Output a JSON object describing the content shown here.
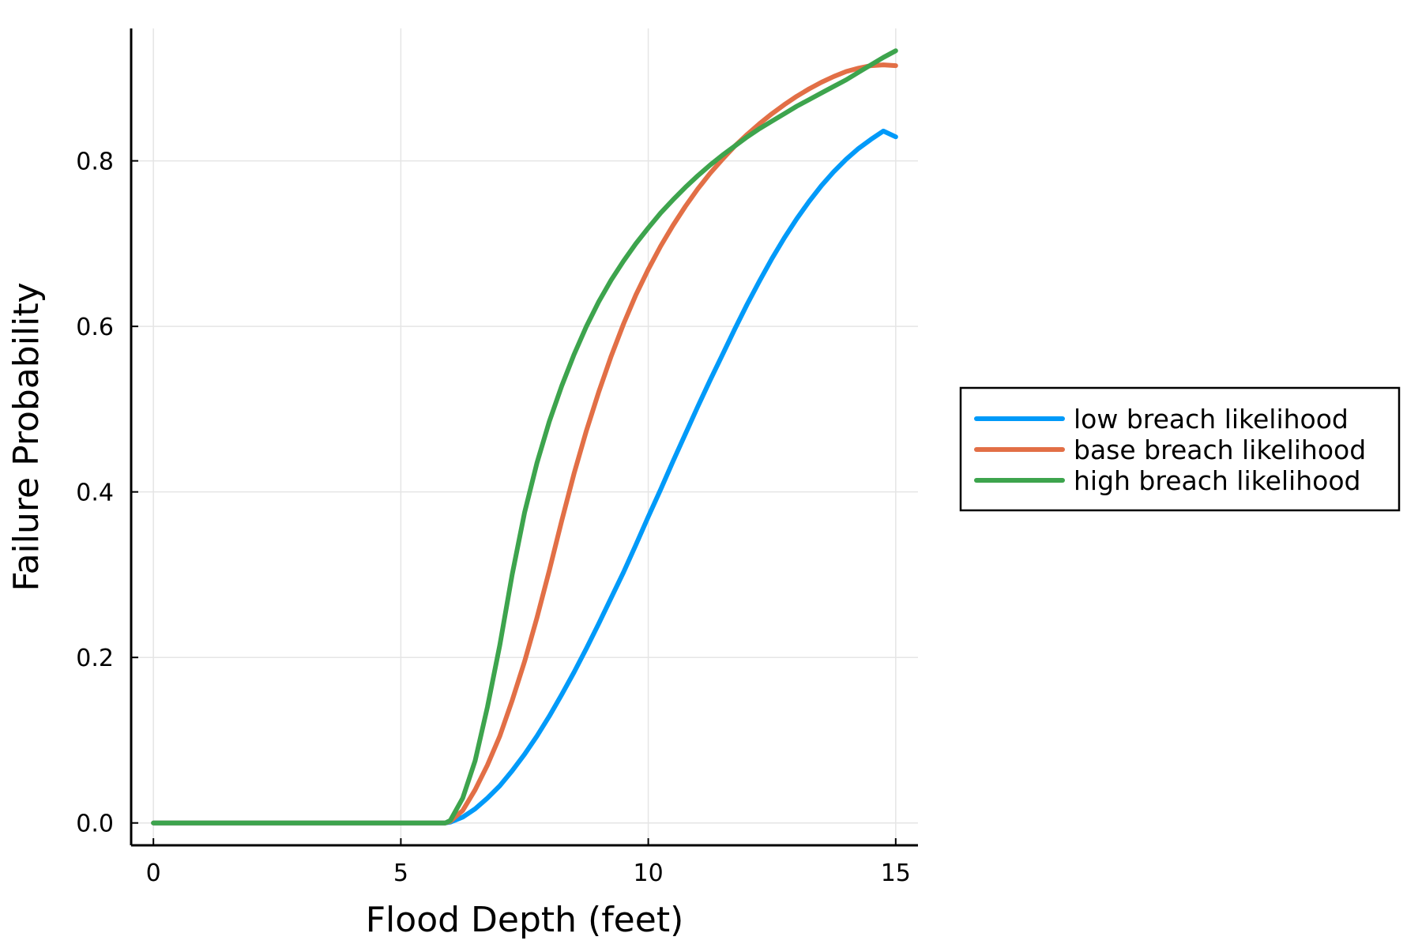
{
  "chart_data": {
    "type": "line",
    "title": "",
    "xlabel": "Flood Depth (feet)",
    "ylabel": "Failure Probability",
    "xlim": [
      -0.45,
      15.45
    ],
    "ylim": [
      -0.027,
      0.96
    ],
    "xticks": [
      0,
      5,
      10,
      15
    ],
    "xtick_labels": [
      "0",
      "5",
      "10",
      "15"
    ],
    "yticks": [
      0.0,
      0.2,
      0.4,
      0.6,
      0.8
    ],
    "ytick_labels": [
      "0.0",
      "0.2",
      "0.4",
      "0.6",
      "0.8"
    ],
    "grid": true,
    "legend_position": "outer-right",
    "x": [
      0,
      1,
      2,
      3,
      4,
      5,
      5.9,
      6.0,
      6.25,
      6.5,
      6.75,
      7.0,
      7.25,
      7.5,
      7.75,
      8.0,
      8.25,
      8.5,
      8.75,
      9.0,
      9.25,
      9.5,
      9.75,
      10.0,
      10.25,
      10.5,
      10.75,
      11.0,
      11.25,
      11.5,
      11.75,
      12.0,
      12.25,
      12.5,
      12.75,
      13.0,
      13.25,
      13.5,
      13.75,
      14.0,
      14.25,
      14.5,
      14.75,
      15.0
    ],
    "series": [
      {
        "name": "low breach likelihood",
        "color": "#009af9",
        "values": [
          0,
          0,
          0,
          0,
          0,
          0,
          0,
          0.001,
          0.007,
          0.017,
          0.03,
          0.045,
          0.063,
          0.083,
          0.105,
          0.129,
          0.155,
          0.182,
          0.211,
          0.241,
          0.272,
          0.303,
          0.336,
          0.37,
          0.403,
          0.437,
          0.47,
          0.503,
          0.535,
          0.566,
          0.597,
          0.627,
          0.655,
          0.682,
          0.707,
          0.73,
          0.751,
          0.77,
          0.787,
          0.802,
          0.815,
          0.826,
          0.836,
          0.829
        ]
      },
      {
        "name": "base breach likelihood",
        "color": "#e26f46",
        "values": [
          0,
          0,
          0,
          0,
          0,
          0,
          0,
          0.002,
          0.015,
          0.04,
          0.07,
          0.105,
          0.148,
          0.195,
          0.248,
          0.305,
          0.365,
          0.422,
          0.474,
          0.521,
          0.564,
          0.603,
          0.638,
          0.669,
          0.697,
          0.722,
          0.745,
          0.766,
          0.785,
          0.802,
          0.818,
          0.832,
          0.845,
          0.857,
          0.868,
          0.878,
          0.887,
          0.895,
          0.902,
          0.908,
          0.912,
          0.915,
          0.916,
          0.915
        ]
      },
      {
        "name": "high breach likelihood",
        "color": "#3da44d",
        "values": [
          0,
          0,
          0,
          0,
          0,
          0,
          0,
          0.003,
          0.03,
          0.075,
          0.14,
          0.215,
          0.3,
          0.375,
          0.435,
          0.485,
          0.528,
          0.566,
          0.6,
          0.63,
          0.656,
          0.679,
          0.7,
          0.719,
          0.737,
          0.753,
          0.768,
          0.782,
          0.795,
          0.807,
          0.818,
          0.829,
          0.839,
          0.848,
          0.857,
          0.866,
          0.874,
          0.882,
          0.89,
          0.898,
          0.907,
          0.916,
          0.925,
          0.933
        ]
      }
    ]
  }
}
